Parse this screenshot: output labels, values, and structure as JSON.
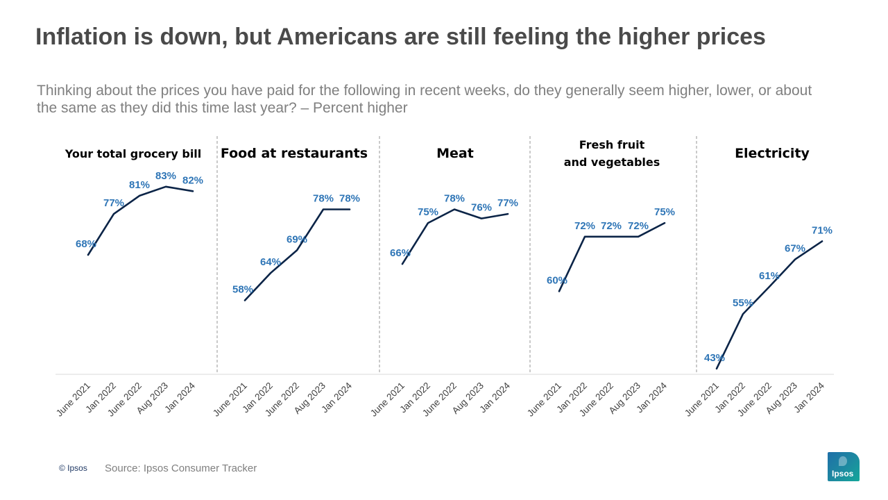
{
  "header": {
    "title": "Inflation is down, but Americans are still feeling the higher prices",
    "subtitle": "Thinking about the prices you have paid for the following in recent weeks, do they generally seem higher, lower, or about the same as they did this time last year? – Percent higher"
  },
  "footer": {
    "copyright": "© Ipsos",
    "source": "Source: Ipsos Consumer Tracker",
    "logo_text": "Ipsos"
  },
  "colors": {
    "line": "#0b2447",
    "data_label": "#2e75b6",
    "divider": "#a6a6a6"
  },
  "chart_data": [
    {
      "type": "line",
      "title": "Your total grocery bill",
      "categories": [
        "June 2021",
        "Jan 2022",
        "June 2022",
        "Aug 2023",
        "Jan 2024"
      ],
      "values": [
        68,
        77,
        81,
        83,
        82
      ],
      "labels": [
        "68%",
        "77%",
        "81%",
        "83%",
        "82%"
      ],
      "unit": "%"
    },
    {
      "type": "line",
      "title": "Food at restaurants",
      "categories": [
        "June 2021",
        "Jan 2022",
        "June 2022",
        "Aug 2023",
        "Jan 2024"
      ],
      "values": [
        58,
        64,
        69,
        78,
        78
      ],
      "labels": [
        "58%",
        "64%",
        "69%",
        "78%",
        "78%"
      ],
      "unit": "%"
    },
    {
      "type": "line",
      "title": "Meat",
      "categories": [
        "June 2021",
        "Jan 2022",
        "June 2022",
        "Aug 2023",
        "Jan 2024"
      ],
      "values": [
        66,
        75,
        78,
        76,
        77
      ],
      "labels": [
        "66%",
        "75%",
        "78%",
        "76%",
        "77%"
      ],
      "unit": "%"
    },
    {
      "type": "line",
      "title": "Fresh fruit and vegetables",
      "categories": [
        "June 2021",
        "Jan 2022",
        "June 2022",
        "Aug 2023",
        "Jan 2024"
      ],
      "values": [
        60,
        72,
        72,
        72,
        75
      ],
      "labels": [
        "60%",
        "72%",
        "72%",
        "72%",
        "75%"
      ],
      "unit": "%"
    },
    {
      "type": "line",
      "title": "Electricity",
      "categories": [
        "June 2021",
        "Jan 2022",
        "June 2022",
        "Aug 2023",
        "Jan 2024"
      ],
      "values": [
        43,
        55,
        61,
        67,
        71
      ],
      "labels": [
        "43%",
        "55%",
        "61%",
        "67%",
        "71%"
      ],
      "unit": "%"
    }
  ]
}
